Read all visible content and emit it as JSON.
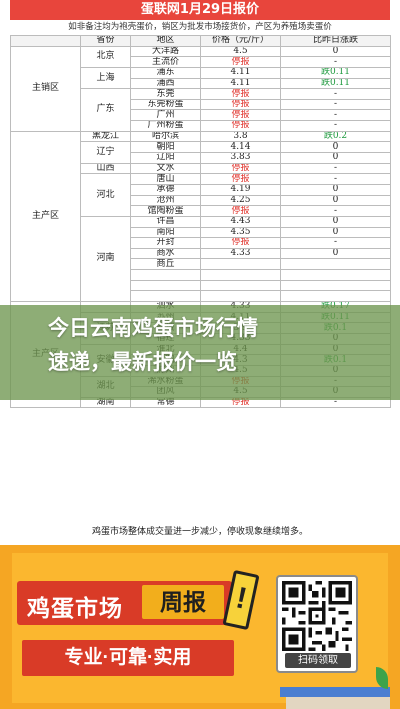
{
  "document": {
    "title": "蛋联网1月29日报价",
    "subtitle": "如非备注均为袍壳蛋价，销区为批发市场接货价，产区为养殖场卖蛋价",
    "headers": [
      "省份",
      "地区",
      "价格（元/斤）",
      "比昨日涨跌"
    ],
    "regions": [
      {
        "name": "主销区",
        "provinces": [
          {
            "name": "北京",
            "rows": [
              {
                "area": "大洋路",
                "price": "4.5",
                "change": "0",
                "state": "normal"
              },
              {
                "area": "主流价",
                "price": "停报",
                "change": "-",
                "state": "halt"
              }
            ]
          },
          {
            "name": "上海",
            "rows": [
              {
                "area": "浦东",
                "price": "4.11",
                "change": "跌0.11",
                "state": "down"
              },
              {
                "area": "浦西",
                "price": "4.11",
                "change": "跌0.11",
                "state": "down"
              }
            ]
          },
          {
            "name": "广东",
            "rows": [
              {
                "area": "东莞",
                "price": "停报",
                "change": "-",
                "state": "halt"
              },
              {
                "area": "东莞粉蛋",
                "price": "停报",
                "change": "-",
                "state": "halt"
              },
              {
                "area": "广州",
                "price": "停报",
                "change": "-",
                "state": "halt"
              },
              {
                "area": "广州粉蛋",
                "price": "停报",
                "change": "-",
                "state": "halt"
              }
            ]
          }
        ]
      },
      {
        "name": "主产区",
        "provinces": [
          {
            "name": "黑龙江",
            "rows": [
              {
                "area": "哈尔滨",
                "price": "3.8",
                "change": "跌0.2",
                "state": "down"
              }
            ]
          },
          {
            "name": "辽宁",
            "rows": [
              {
                "area": "朝阳",
                "price": "4.14",
                "change": "0",
                "state": "normal"
              },
              {
                "area": "辽阳",
                "price": "3.83",
                "change": "0",
                "state": "normal"
              }
            ]
          },
          {
            "name": "山西",
            "rows": [
              {
                "area": "文水",
                "price": "停报",
                "change": "-",
                "state": "halt"
              }
            ]
          },
          {
            "name": "河北",
            "rows": [
              {
                "area": "唐山",
                "price": "停报",
                "change": "-",
                "state": "halt"
              },
              {
                "area": "承德",
                "price": "4.19",
                "change": "0",
                "state": "normal"
              },
              {
                "area": "沧州",
                "price": "4.25",
                "change": "0",
                "state": "normal"
              },
              {
                "area": "馆陶粉蛋",
                "price": "停报",
                "change": "-",
                "state": "halt"
              }
            ]
          },
          {
            "name": "河南",
            "rows": [
              {
                "area": "许昌",
                "price": "4.43",
                "change": "0",
                "state": "normal"
              },
              {
                "area": "南阳",
                "price": "4.35",
                "change": "0",
                "state": "normal"
              },
              {
                "area": "开封",
                "price": "停报",
                "change": "-",
                "state": "halt"
              },
              {
                "area": "商水",
                "price": "4.33",
                "change": "0",
                "state": "normal"
              },
              {
                "area": "商丘",
                "price": "",
                "change": "",
                "state": "normal"
              },
              {
                "area": "",
                "price": "",
                "change": "",
                "state": "normal"
              },
              {
                "area": "",
                "price": "",
                "change": "",
                "state": "normal"
              },
              {
                "area": "",
                "price": "",
                "change": "",
                "state": "normal"
              }
            ]
          }
        ]
      },
      {
        "name": "主产区",
        "provinces": [
          {
            "name": "",
            "rows": [
              {
                "area": "泗水",
                "price": "4.33",
                "change": "跌0.17",
                "state": "down"
              }
            ]
          },
          {
            "name": "江苏",
            "rows": [
              {
                "area": "苏州",
                "price": "4.11",
                "change": "跌0.11",
                "state": "down"
              },
              {
                "area": "盐城",
                "price": "3.9",
                "change": "跌0.1",
                "state": "down"
              },
              {
                "area": "宿迁",
                "price": "4.33",
                "change": "0",
                "state": "normal"
              }
            ]
          },
          {
            "name": "安徽",
            "rows": [
              {
                "area": "淮北",
                "price": "4.4",
                "change": "0",
                "state": "normal"
              },
              {
                "area": "阜阳",
                "price": "4.3",
                "change": "跌0.1",
                "state": "down"
              },
              {
                "area": "滁州",
                "price": "4.5",
                "change": "0",
                "state": "normal"
              }
            ]
          },
          {
            "name": "湖北",
            "rows": [
              {
                "area": "浠水粉蛋",
                "price": "停报",
                "change": "-",
                "state": "halt"
              },
              {
                "area": "团风",
                "price": "4.5",
                "change": "0",
                "state": "normal"
              }
            ]
          },
          {
            "name": "湖南",
            "rows": [
              {
                "area": "常德",
                "price": "停报",
                "change": "-",
                "state": "halt"
              }
            ]
          }
        ]
      }
    ],
    "footnote": "鸡蛋市场整体成交量进一步减少，停收现象继续增多。"
  },
  "overlay": {
    "line1": "今日云南鸡蛋市场行情",
    "line2": "速递，最新报价一览"
  },
  "banner": {
    "headline_a": "鸡蛋市场",
    "headline_b": "周报",
    "exclaim": "!",
    "tagline": "专业·可靠·实用",
    "qr_label": "扫码领取"
  },
  "colors": {
    "title_bg": "#e8453c",
    "halt_red": "#e0322b",
    "down_green": "#1e9a3e",
    "overlay_green": "#6e9650",
    "banner_orange": "#f5a623",
    "headline_red": "#d93b27"
  }
}
